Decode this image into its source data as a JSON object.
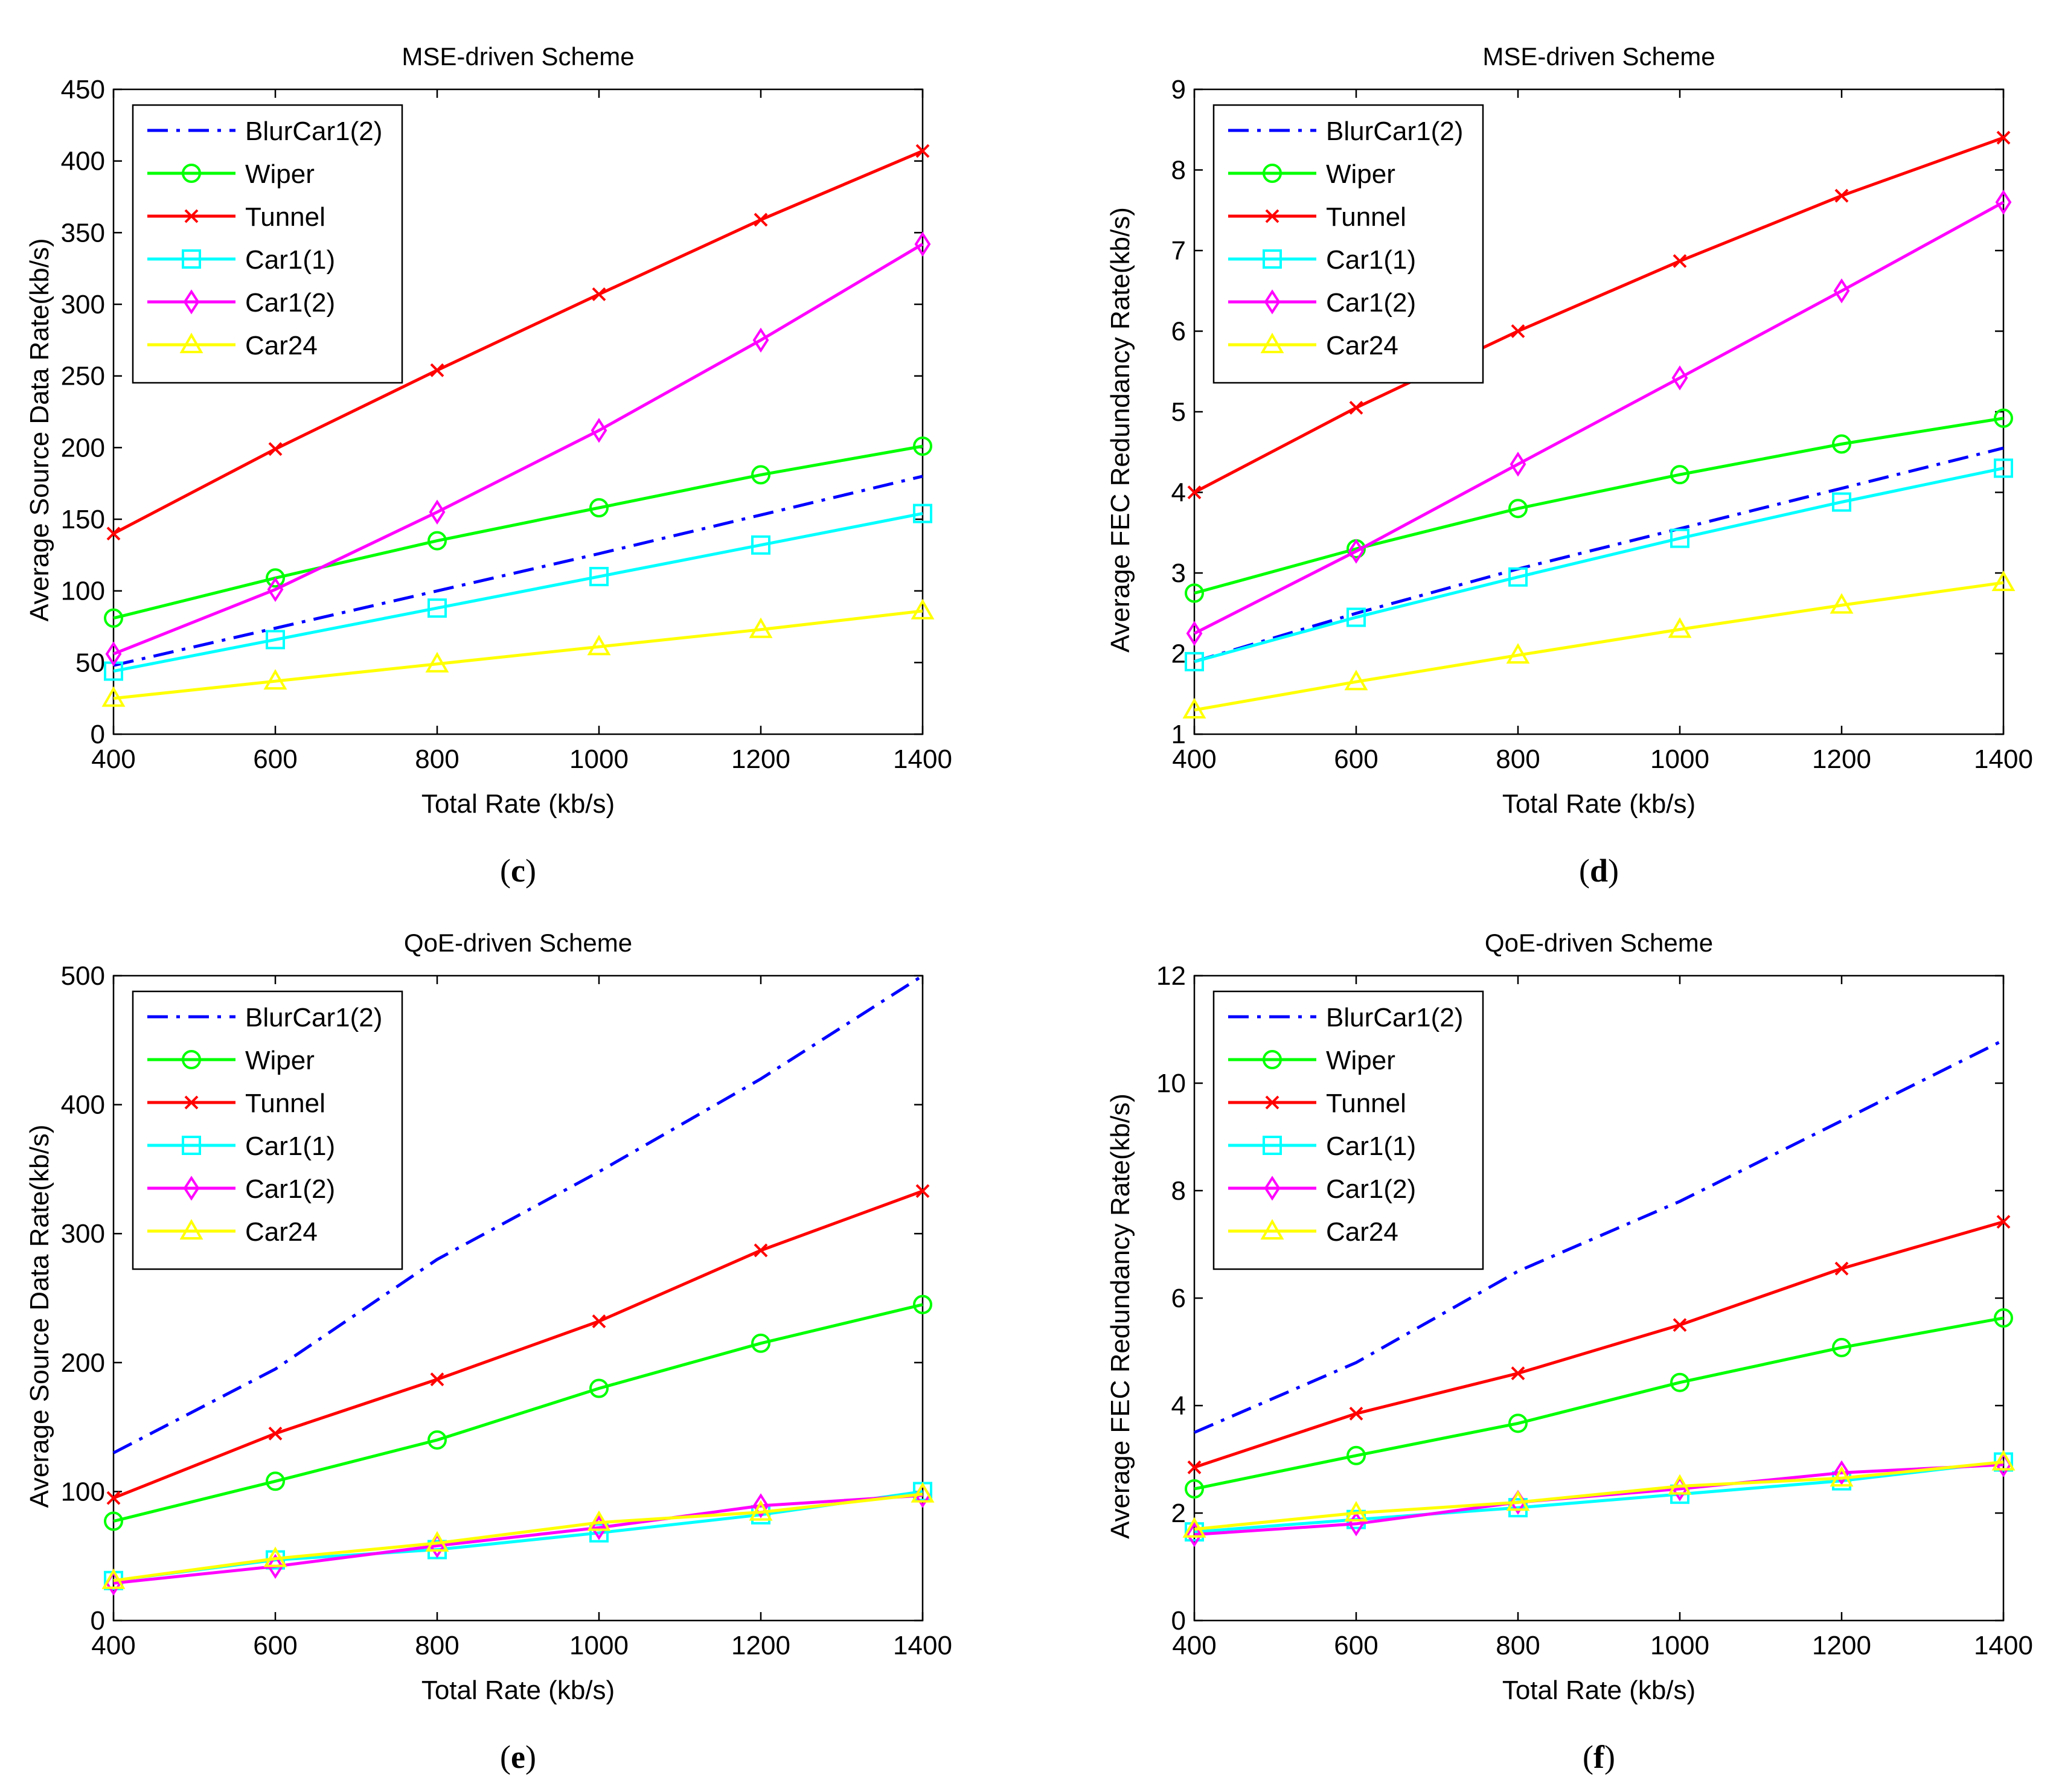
{
  "figure": {
    "panel_labels": [
      "c",
      "d",
      "e",
      "f"
    ]
  },
  "chart_data": [
    {
      "panel": "c",
      "type": "line",
      "title": "MSE-driven Scheme",
      "xlabel": "Total Rate (kb/s)",
      "ylabel": "Average Source Data Rate(kb/s)",
      "xlim": [
        400,
        1400
      ],
      "ylim": [
        0,
        450
      ],
      "xticks": [
        400,
        600,
        800,
        1000,
        1200,
        1400
      ],
      "yticks": [
        0,
        50,
        100,
        150,
        200,
        250,
        300,
        350,
        400,
        450
      ],
      "legend": "top-left",
      "x": [
        400,
        600,
        800,
        1000,
        1200,
        1400
      ],
      "series": [
        {
          "name": "BlurCar1(2)",
          "color": "#0000ff",
          "marker": "none",
          "dash": "dashdot",
          "values": [
            48,
            74,
            100,
            126,
            153,
            180
          ]
        },
        {
          "name": "Wiper",
          "color": "#00ff00",
          "marker": "circle",
          "dash": "solid",
          "values": [
            81,
            109,
            135,
            158,
            181,
            201
          ]
        },
        {
          "name": "Tunnel",
          "color": "#ff0000",
          "marker": "x",
          "dash": "solid",
          "values": [
            140,
            199,
            254,
            307,
            359,
            407
          ]
        },
        {
          "name": "Car1(1)",
          "color": "#00ffff",
          "marker": "square",
          "dash": "solid",
          "values": [
            44,
            66,
            88,
            110,
            132,
            154
          ]
        },
        {
          "name": "Car1(2)",
          "color": "#ff00ff",
          "marker": "diamond",
          "dash": "solid",
          "values": [
            56,
            101,
            155,
            212,
            275,
            342
          ]
        },
        {
          "name": "Car24",
          "color": "#ffff00",
          "marker": "triangle",
          "dash": "solid",
          "values": [
            25,
            37,
            49,
            61,
            73,
            86
          ]
        }
      ]
    },
    {
      "panel": "d",
      "type": "line",
      "title": "MSE-driven Scheme",
      "xlabel": "Total Rate (kb/s)",
      "ylabel": "Average FEC Redundancy Rate(kb/s)",
      "xlim": [
        400,
        1400
      ],
      "ylim": [
        1,
        9
      ],
      "xticks": [
        400,
        600,
        800,
        1000,
        1200,
        1400
      ],
      "yticks": [
        1,
        2,
        3,
        4,
        5,
        6,
        7,
        8,
        9
      ],
      "legend": "top-left",
      "x": [
        400,
        600,
        800,
        1000,
        1200,
        1400
      ],
      "series": [
        {
          "name": "BlurCar1(2)",
          "color": "#0000ff",
          "marker": "none",
          "dash": "dashdot",
          "values": [
            1.9,
            2.5,
            3.05,
            3.55,
            4.05,
            4.55
          ]
        },
        {
          "name": "Wiper",
          "color": "#00ff00",
          "marker": "circle",
          "dash": "solid",
          "values": [
            2.75,
            3.3,
            3.8,
            4.22,
            4.6,
            4.92
          ]
        },
        {
          "name": "Tunnel",
          "color": "#ff0000",
          "marker": "x",
          "dash": "solid",
          "values": [
            4.0,
            5.05,
            6.0,
            6.87,
            7.68,
            8.4
          ]
        },
        {
          "name": "Car1(1)",
          "color": "#00ffff",
          "marker": "square",
          "dash": "solid",
          "values": [
            1.9,
            2.45,
            2.95,
            3.43,
            3.88,
            4.3
          ]
        },
        {
          "name": "Car1(2)",
          "color": "#ff00ff",
          "marker": "diamond",
          "dash": "solid",
          "values": [
            2.25,
            3.27,
            4.35,
            5.42,
            6.5,
            7.6
          ]
        },
        {
          "name": "Car24",
          "color": "#ffff00",
          "marker": "triangle",
          "dash": "solid",
          "values": [
            1.3,
            1.65,
            1.98,
            2.3,
            2.6,
            2.88
          ]
        }
      ]
    },
    {
      "panel": "e",
      "type": "line",
      "title": "QoE-driven Scheme",
      "xlabel": "Total Rate (kb/s)",
      "ylabel": "Average Source Data Rate(kb/s)",
      "xlim": [
        400,
        1400
      ],
      "ylim": [
        0,
        500
      ],
      "xticks": [
        400,
        600,
        800,
        1000,
        1200,
        1400
      ],
      "yticks": [
        0,
        100,
        200,
        300,
        400,
        500
      ],
      "legend": "top-left",
      "x": [
        400,
        600,
        800,
        1000,
        1200,
        1400
      ],
      "series": [
        {
          "name": "BlurCar1(2)",
          "color": "#0000ff",
          "marker": "none",
          "dash": "dashdot",
          "values": [
            130,
            195,
            280,
            348,
            420,
            500
          ]
        },
        {
          "name": "Wiper",
          "color": "#00ff00",
          "marker": "circle",
          "dash": "solid",
          "values": [
            77,
            108,
            140,
            180,
            215,
            245
          ]
        },
        {
          "name": "Tunnel",
          "color": "#ff0000",
          "marker": "x",
          "dash": "solid",
          "values": [
            95,
            145,
            187,
            232,
            287,
            333
          ]
        },
        {
          "name": "Car1(1)",
          "color": "#00ffff",
          "marker": "square",
          "dash": "solid",
          "values": [
            31,
            47,
            55,
            68,
            82,
            100
          ]
        },
        {
          "name": "Car1(2)",
          "color": "#ff00ff",
          "marker": "diamond",
          "dash": "solid",
          "values": [
            29,
            42,
            58,
            72,
            89,
            97
          ]
        },
        {
          "name": "Car24",
          "color": "#ffff00",
          "marker": "triangle",
          "dash": "solid",
          "values": [
            31,
            48,
            60,
            76,
            84,
            98
          ]
        }
      ]
    },
    {
      "panel": "f",
      "type": "line",
      "title": "QoE-driven Scheme",
      "xlabel": "Total Rate (kb/s)",
      "ylabel": "Average FEC Redundancy Rate(kb/s)",
      "xlim": [
        400,
        1400
      ],
      "ylim": [
        0,
        12
      ],
      "xticks": [
        400,
        600,
        800,
        1000,
        1200,
        1400
      ],
      "yticks": [
        0,
        2,
        4,
        6,
        8,
        10,
        12
      ],
      "legend": "top-left",
      "x": [
        400,
        600,
        800,
        1000,
        1200,
        1400
      ],
      "series": [
        {
          "name": "BlurCar1(2)",
          "color": "#0000ff",
          "marker": "none",
          "dash": "dashdot",
          "values": [
            3.5,
            4.8,
            6.5,
            7.8,
            9.3,
            10.8
          ]
        },
        {
          "name": "Wiper",
          "color": "#00ff00",
          "marker": "circle",
          "dash": "solid",
          "values": [
            2.45,
            3.07,
            3.67,
            4.43,
            5.08,
            5.63
          ]
        },
        {
          "name": "Tunnel",
          "color": "#ff0000",
          "marker": "x",
          "dash": "solid",
          "values": [
            2.85,
            3.85,
            4.6,
            5.5,
            6.55,
            7.42
          ]
        },
        {
          "name": "Car1(1)",
          "color": "#00ffff",
          "marker": "square",
          "dash": "solid",
          "values": [
            1.65,
            1.88,
            2.1,
            2.35,
            2.6,
            2.95
          ]
        },
        {
          "name": "Car1(2)",
          "color": "#ff00ff",
          "marker": "diamond",
          "dash": "solid",
          "values": [
            1.6,
            1.8,
            2.2,
            2.45,
            2.75,
            2.9
          ]
        },
        {
          "name": "Car24",
          "color": "#ffff00",
          "marker": "triangle",
          "dash": "solid",
          "values": [
            1.7,
            2.0,
            2.2,
            2.5,
            2.65,
            2.95
          ]
        }
      ]
    }
  ]
}
